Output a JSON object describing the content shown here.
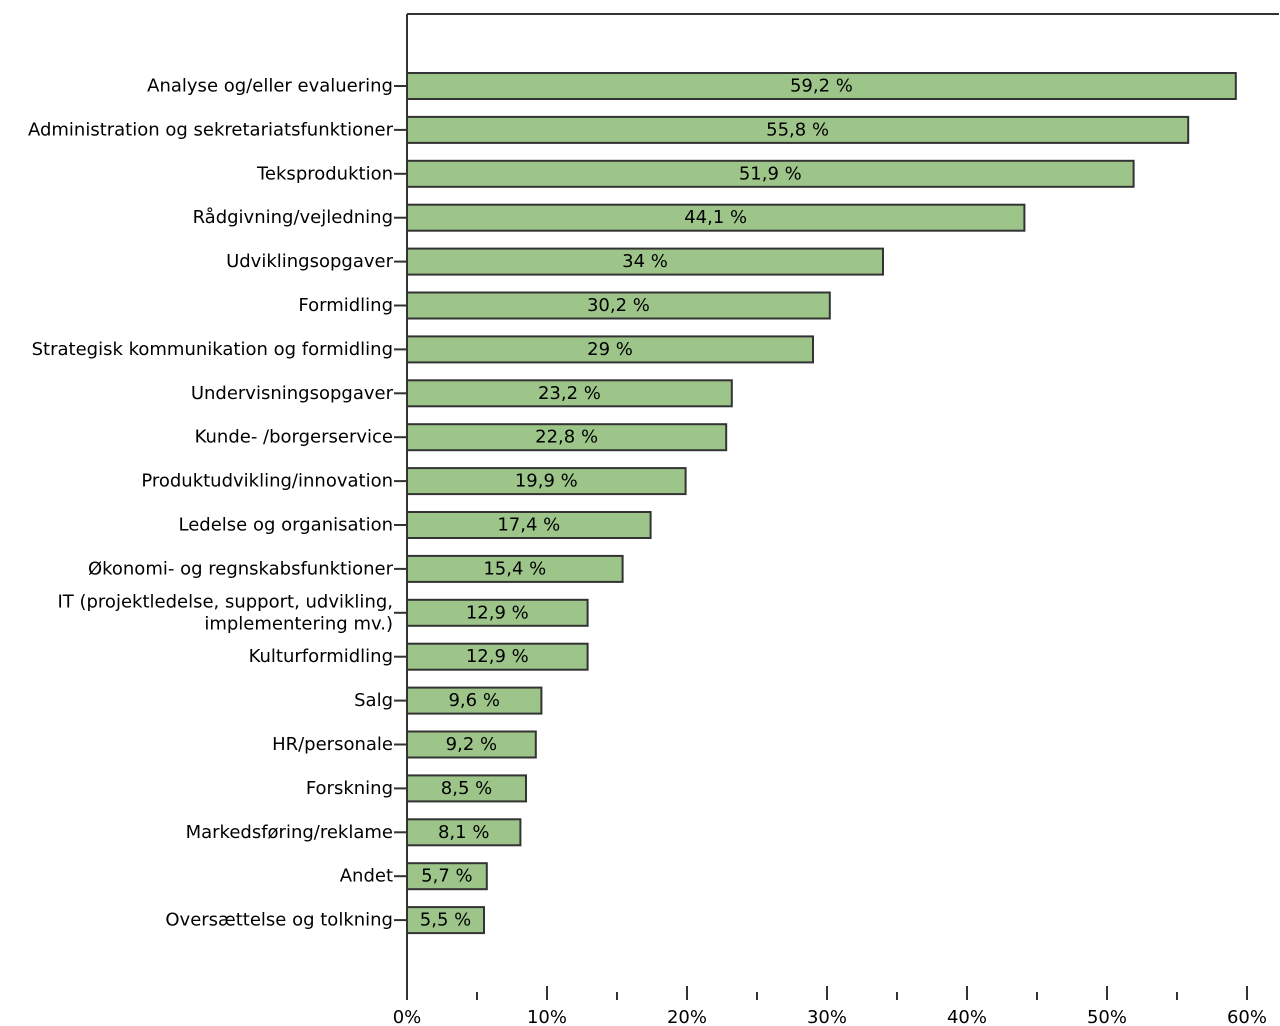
{
  "chart_data": {
    "type": "bar",
    "orientation": "horizontal",
    "categories": [
      "Analyse og/eller evaluering",
      "Administration og sekretariatsfunktioner",
      "Teksproduktion",
      "Rådgivning/vejledning",
      "Udviklingsopgaver",
      "Formidling",
      "Strategisk kommunikation og formidling",
      "Undervisningsopgaver",
      "Kunde- /borgerservice",
      "Produktudvikling/innovation",
      "Ledelse og organisation",
      "Økonomi- og regnskabsfunktioner",
      "IT (projektledelse, support, udvikling,\nimplementering mv.)",
      "Kulturformidling",
      "Salg",
      "HR/personale",
      "Forskning",
      "Markedsføring/reklame",
      "Andet",
      "Oversættelse og tolkning"
    ],
    "values": [
      59.2,
      55.8,
      51.9,
      44.1,
      34,
      30.2,
      29,
      23.2,
      22.8,
      19.9,
      17.4,
      15.4,
      12.9,
      12.9,
      9.6,
      9.2,
      8.5,
      8.1,
      5.7,
      5.5
    ],
    "data_labels": [
      "59,2 %",
      "55,8 %",
      "51,9 %",
      "44,1 %",
      "34 %",
      "30,2 %",
      "29 %",
      "23,2 %",
      "22,8 %",
      "19,9 %",
      "17,4 %",
      "15,4 %",
      "12,9 %",
      "12,9 %",
      "9,6 %",
      "9,2 %",
      "8,5 %",
      "8,1 %",
      "5,7 %",
      "5,5 %"
    ],
    "x_ticks": [
      "0%",
      "10%",
      "20%",
      "30%",
      "40%",
      "50%",
      "60%"
    ],
    "xlim": [
      0,
      62
    ],
    "title": "",
    "xlabel": "",
    "ylabel": "",
    "grid": false,
    "bar_color": "#9dc58a",
    "edge_color": "#333333"
  }
}
